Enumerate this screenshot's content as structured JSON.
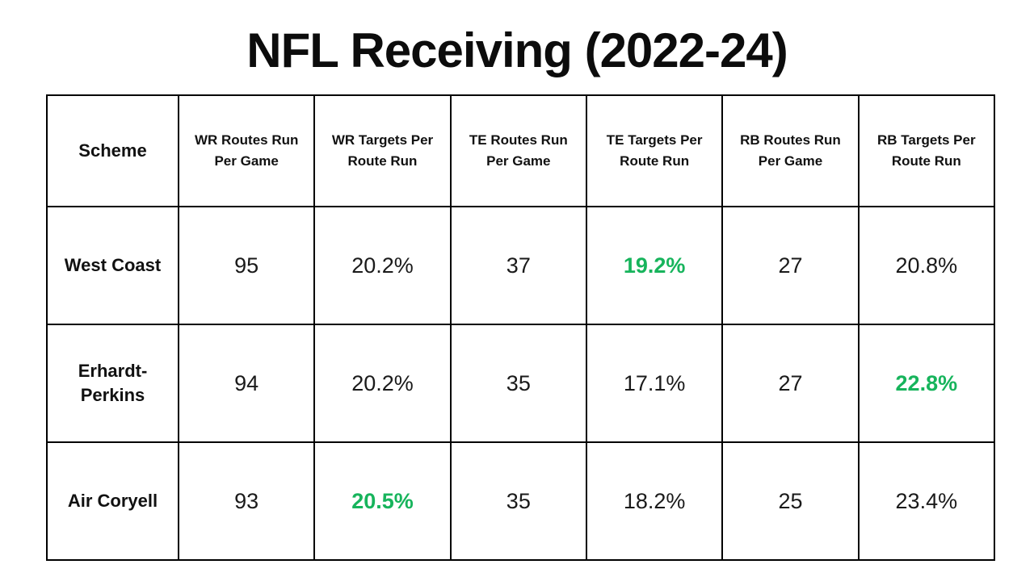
{
  "colors": {
    "highlight_green": "#17B45C",
    "text": "#111111",
    "border": "#000000",
    "background": "#FFFFFF"
  },
  "chart_data": {
    "type": "table",
    "title": "NFL Receiving (2022-24)",
    "columns": [
      "Scheme",
      "WR Routes Run Per Game",
      "WR Targets Per Route Run",
      "TE Routes Run Per Game",
      "TE Targets Per Route Run",
      "RB Routes Run Per Game",
      "RB Targets Per Route Run"
    ],
    "rows": [
      {
        "scheme": "West Coast",
        "values": [
          "95",
          "20.2%",
          "37",
          "19.2%",
          "27",
          "20.8%"
        ]
      },
      {
        "scheme": "Erhardt-Perkins",
        "values": [
          "94",
          "20.2%",
          "35",
          "17.1%",
          "27",
          "22.8%"
        ]
      },
      {
        "scheme": "Air Coryell",
        "values": [
          "93",
          "20.5%",
          "35",
          "18.2%",
          "25",
          "23.4%"
        ]
      }
    ],
    "highlight_cells": [
      [
        0,
        3
      ],
      [
        1,
        5
      ],
      [
        2,
        1
      ]
    ]
  }
}
